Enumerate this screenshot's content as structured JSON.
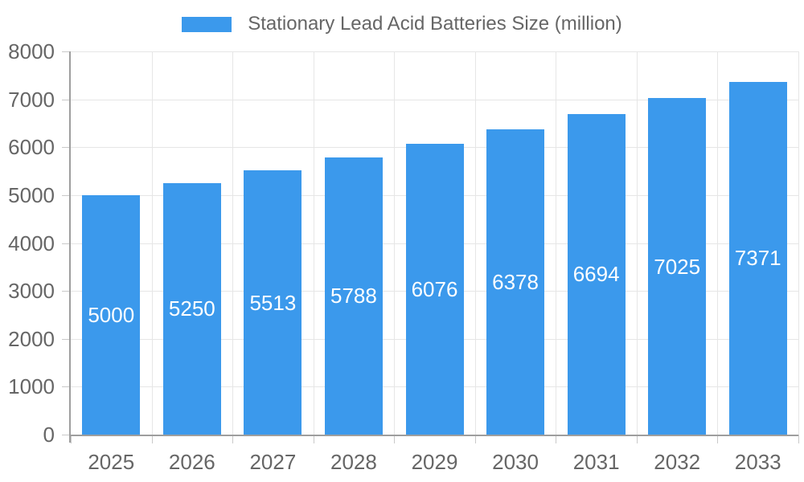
{
  "legend": {
    "position": "top",
    "label": "Stationary Lead Acid Batteries Size (million)"
  },
  "chart_data": {
    "type": "bar",
    "title": "Stationary Lead Acid Batteries Size (million)",
    "categories": [
      "2025",
      "2026",
      "2027",
      "2028",
      "2029",
      "2030",
      "2031",
      "2032",
      "2033"
    ],
    "series": [
      {
        "name": "Stationary Lead Acid Batteries Size (million)",
        "values": [
          5000,
          5250,
          5513,
          5788,
          6076,
          6378,
          6694,
          7025,
          7371
        ]
      }
    ],
    "bar_value_labels": [
      "5000",
      "5250",
      "5513",
      "5788",
      "6076",
      "6378",
      "6694",
      "7025",
      "7371"
    ],
    "xlabel": "",
    "ylabel": "",
    "ylim": [
      0,
      8000
    ],
    "y_ticks": [
      0,
      1000,
      2000,
      3000,
      4000,
      5000,
      6000,
      7000,
      8000
    ],
    "grid": true,
    "legend_position": "top",
    "colors": {
      "bar": "#3b99ec",
      "bar_label_text": "#ffffff",
      "grid": "#e6e6e6",
      "tick_mark": "#c9c9c9",
      "axis": "#9e9e9e",
      "tick_text": "#666666",
      "background": "#ffffff"
    }
  }
}
